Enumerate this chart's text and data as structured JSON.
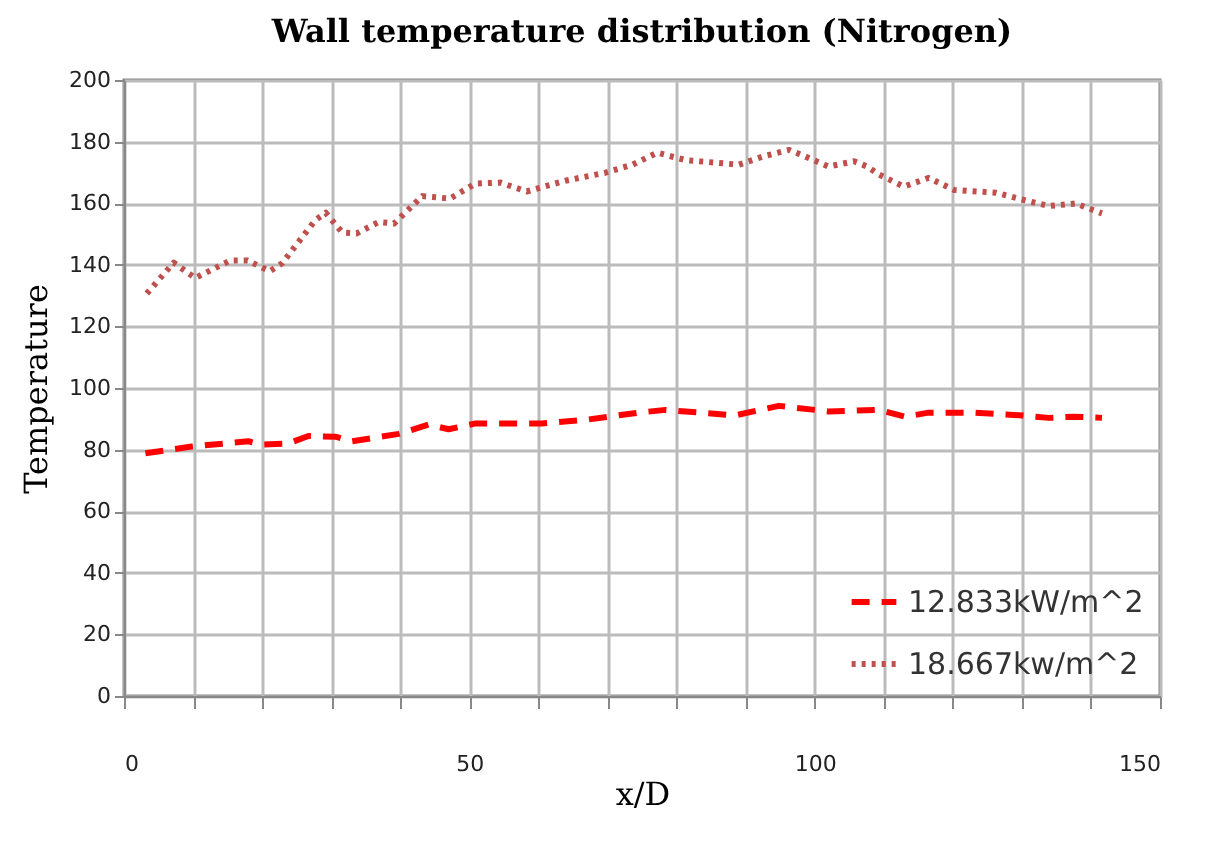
{
  "chart_data": {
    "type": "line",
    "title": "Wall temperature distribution (Nitrogen)",
    "xlabel": "x/D",
    "ylabel": "Temperature",
    "xlim": [
      0,
      150
    ],
    "xticks": [
      0,
      {
        "value": 10,
        "label": null
      },
      {
        "value": 20,
        "label": null
      },
      {
        "value": 30,
        "label": null
      },
      {
        "value": 40,
        "label": null
      },
      50,
      {
        "value": 60,
        "label": null
      },
      {
        "value": 70,
        "label": null
      },
      {
        "value": 80,
        "label": null
      },
      {
        "value": 90,
        "label": null
      },
      100,
      {
        "value": 110,
        "label": null
      },
      {
        "value": 120,
        "label": null
      },
      {
        "value": 130,
        "label": null
      },
      {
        "value": 140,
        "label": null
      },
      150
    ],
    "ylim": [
      0,
      200
    ],
    "yticks": [
      0,
      20,
      40,
      60,
      80,
      100,
      120,
      140,
      160,
      180,
      200
    ],
    "grid": true,
    "legend": "bottom right",
    "series": [
      {
        "name": "12.833kW/m^2",
        "color": "#ff0000",
        "line_style": "dashed",
        "x": [
          3.1,
          9.8,
          18,
          20,
          23.8,
          26.7,
          30.6,
          33,
          39.8,
          44.1,
          47,
          50.9,
          60.5,
          67.3,
          74.5,
          78.4,
          88.5,
          94.8,
          102,
          109.3,
          113.1,
          116.5,
          122.8,
          130,
          133.9,
          137.3,
          141.6
        ],
        "values": [
          78.8,
          81,
          82.7,
          81.6,
          82,
          84.4,
          84.2,
          82.7,
          85.1,
          88.1,
          86.6,
          88.5,
          88.5,
          89.8,
          92,
          92.9,
          91.1,
          94.2,
          92.4,
          92.9,
          90.7,
          92,
          92,
          91.1,
          90.3,
          90.7,
          90.3
        ]
      },
      {
        "name": "18.667kw/m^2",
        "color": "#c0504d",
        "line_style": "dotted",
        "x": [
          3.3,
          7.2,
          10.3,
          15.4,
          17.9,
          21.1,
          22.9,
          27.7,
          29.2,
          31.6,
          33.7,
          36.9,
          39.1,
          43.2,
          47.2,
          50.9,
          54.5,
          58.3,
          63.9,
          69.7,
          73.6,
          77.2,
          81.3,
          89,
          92.7,
          96.3,
          98.5,
          102,
          105.7,
          107.6,
          109.3,
          112.9,
          116.5,
          120.2,
          126.2,
          130,
          133.9,
          137.8,
          141.6
        ],
        "values": [
          130.7,
          140.7,
          135.7,
          141.4,
          141.4,
          137.9,
          140.5,
          154.5,
          156.9,
          150.5,
          150.2,
          153.9,
          153.4,
          162.3,
          161.5,
          166.4,
          166.7,
          163.8,
          167.3,
          169.9,
          172.5,
          176.4,
          174,
          172.5,
          175.3,
          177.3,
          175.3,
          171.9,
          173.6,
          171.9,
          169.3,
          165.4,
          168.2,
          164.3,
          163.4,
          161.2,
          159.1,
          159.9,
          156.7
        ]
      }
    ]
  }
}
